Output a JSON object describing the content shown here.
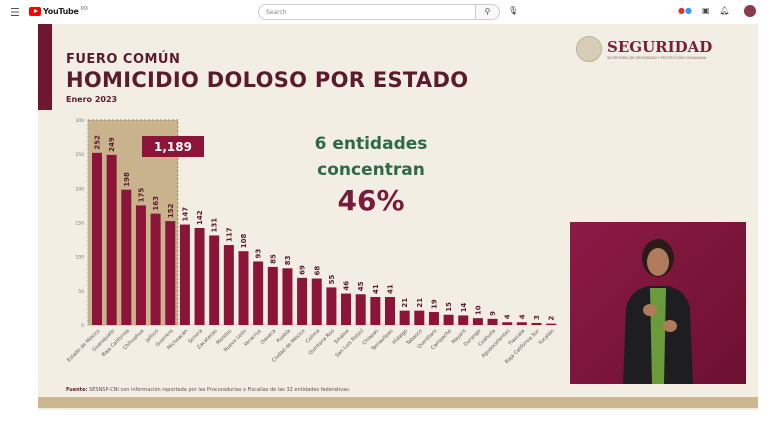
{
  "youtube": {
    "logo_text": "YouTube",
    "region": "MX",
    "search_placeholder": "Search"
  },
  "slide": {
    "kicker": "FUERO COMÚN",
    "title": "HOMICIDIO DOLOSO POR ESTADO",
    "period": "Enero 2023",
    "brand": "SEGURIDAD",
    "brand_sub": "SECRETARÍA DE SEGURIDAD Y PROTECCIÓN CIUDADANA",
    "callout_line1": "6 entidades",
    "callout_line2": "concentran",
    "callout_pct": "46%",
    "source_label": "Fuente:",
    "source_text": "SESNSP-CNI con información reportada por las Procuradurías o Fiscalías de las 32 entidades federativas.",
    "colors": {
      "bar": "#8b1538",
      "highlight": "#c8b38d",
      "title": "#5b1a2d",
      "callout": "#2d6a45"
    }
  },
  "chart_data": {
    "type": "bar",
    "ylim": [
      0,
      300
    ],
    "yticks": [
      0,
      50,
      100,
      150,
      200,
      250,
      300
    ],
    "grid": false,
    "categories": [
      "Estado de México",
      "Guanajuato",
      "Baja California",
      "Chihuahua",
      "Jalisco",
      "Guerrero",
      "Michoacán",
      "Sonora",
      "Zacatecas",
      "Morelos",
      "Nuevo León",
      "Veracruz",
      "Oaxaca",
      "Puebla",
      "Ciudad de México",
      "Colima",
      "Quintana Roo",
      "Sinaloa",
      "San Luis Potosí",
      "Chiapas",
      "Tamaulipas",
      "Hidalgo",
      "Tabasco",
      "Querétaro",
      "Campeche",
      "Nayarit",
      "Durango",
      "Coahuila",
      "Aguascalientes",
      "Tlaxcala",
      "Baja California Sur",
      "Yucatán"
    ],
    "values": [
      252,
      249,
      198,
      175,
      163,
      152,
      147,
      142,
      131,
      117,
      108,
      93,
      85,
      83,
      69,
      68,
      55,
      46,
      45,
      41,
      41,
      21,
      21,
      19,
      15,
      14,
      10,
      9,
      4,
      4,
      3,
      2
    ],
    "highlight_count": 6,
    "highlight_total_label": "1,189"
  }
}
